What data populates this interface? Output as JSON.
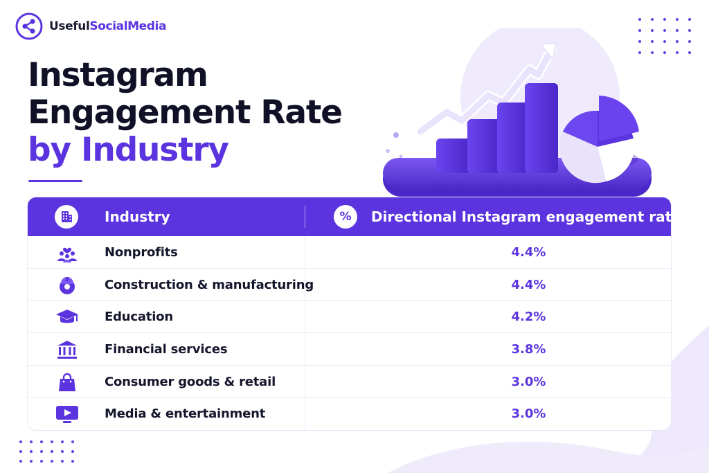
{
  "brand": {
    "part1": "Useful",
    "part2": "SocialMedia"
  },
  "title": {
    "line1": "Instagram",
    "line2": "Engagement Rate",
    "line3": "by Industry"
  },
  "colors": {
    "accent": "#5b34e0",
    "dark": "#101126",
    "lavender": "#ede8fb"
  },
  "table": {
    "header_icons": {
      "industry": "building-icon",
      "rate": "percent-icon"
    },
    "percent_symbol": "%"
  },
  "chart_data": {
    "type": "table",
    "columns": [
      "Industry",
      "Directional Instagram engagement rate"
    ],
    "rows": [
      {
        "industry": "Nonprofits",
        "rate": "4.4%",
        "value": 4.4,
        "icon": "heart-people-icon"
      },
      {
        "industry": "Construction & manufacturing",
        "rate": "4.4%",
        "value": 4.4,
        "icon": "hardhat-gear-icon"
      },
      {
        "industry": "Education",
        "rate": "4.2%",
        "value": 4.2,
        "icon": "graduation-cap-icon"
      },
      {
        "industry": "Financial services",
        "rate": "3.8%",
        "value": 3.8,
        "icon": "bank-icon"
      },
      {
        "industry": "Consumer goods & retail",
        "rate": "3.0%",
        "value": 3.0,
        "icon": "shopping-bag-icon"
      },
      {
        "industry": "Media & entertainment",
        "rate": "3.0%",
        "value": 3.0,
        "icon": "play-screen-icon"
      }
    ]
  }
}
